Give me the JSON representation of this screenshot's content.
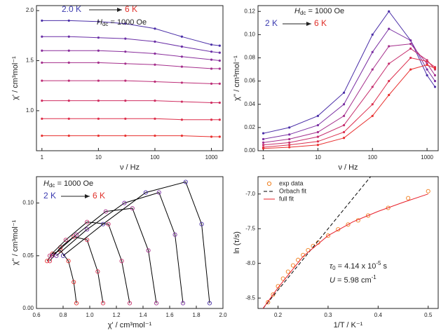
{
  "chart_data": [
    {
      "type": "line",
      "x_scale": "log",
      "xlim": [
        0.8,
        1600
      ],
      "ylim": [
        0.6,
        2.05
      ],
      "xticks": [
        1,
        10,
        100,
        1000
      ],
      "yticks": [
        {
          "value": 1,
          "label": "1.0"
        },
        {
          "value": 1.5,
          "label": "1.5"
        },
        {
          "value": 2,
          "label": "2.0"
        }
      ],
      "x_label": "ν / Hz",
      "y_label": "χ' / cm³mol⁻¹",
      "temp_from": "2.0 K",
      "temp_to": "6 K",
      "temp_from_color": "#3b3bb0",
      "temp_to_color": "#e0302a",
      "field_label": [
        "H",
        "dc",
        " = 1000 Oe"
      ],
      "x": [
        1,
        3,
        10,
        30,
        100,
        300,
        1000,
        1400
      ],
      "series": [
        {
          "color": "#4b2fa8",
          "values": [
            1.9,
            1.9,
            1.89,
            1.87,
            1.82,
            1.74,
            1.66,
            1.65
          ]
        },
        {
          "color": "#6a2fa6",
          "values": [
            1.74,
            1.74,
            1.73,
            1.72,
            1.69,
            1.64,
            1.59,
            1.58
          ]
        },
        {
          "color": "#8a2f9c",
          "values": [
            1.6,
            1.6,
            1.6,
            1.59,
            1.57,
            1.54,
            1.51,
            1.5
          ]
        },
        {
          "color": "#a52f8c",
          "values": [
            1.48,
            1.48,
            1.48,
            1.47,
            1.46,
            1.44,
            1.42,
            1.42
          ]
        },
        {
          "color": "#bd2f78",
          "values": [
            1.3,
            1.3,
            1.3,
            1.3,
            1.29,
            1.28,
            1.27,
            1.27
          ]
        },
        {
          "color": "#d02f62",
          "values": [
            1.1,
            1.1,
            1.1,
            1.1,
            1.1,
            1.09,
            1.08,
            1.08
          ]
        },
        {
          "color": "#de2f4a",
          "values": [
            0.92,
            0.92,
            0.92,
            0.92,
            0.92,
            0.91,
            0.91,
            0.91
          ]
        },
        {
          "color": "#e8302f",
          "values": [
            0.75,
            0.75,
            0.75,
            0.75,
            0.75,
            0.75,
            0.74,
            0.74
          ]
        }
      ]
    },
    {
      "type": "line",
      "x_scale": "log",
      "xlim": [
        0.8,
        1600
      ],
      "ylim": [
        0,
        0.125
      ],
      "xticks": [
        1,
        10,
        100,
        1000
      ],
      "yticks": [
        {
          "value": 0,
          "label": "0.00"
        },
        {
          "value": 0.02,
          "label": "0.02"
        },
        {
          "value": 0.04,
          "label": "0.04"
        },
        {
          "value": 0.06,
          "label": "0.06"
        },
        {
          "value": 0.08,
          "label": "0.08"
        },
        {
          "value": 0.1,
          "label": "0.10"
        },
        {
          "value": 0.12,
          "label": "0.12"
        }
      ],
      "x_label": "ν / Hz",
      "y_label": "χ'' / cm³mol⁻¹",
      "temp_from": "2 K",
      "temp_to": "6 K",
      "temp_from_color": "#3b3bb0",
      "temp_to_color": "#e0302a",
      "field_label": [
        "H",
        "dc",
        " = 1000 Oe"
      ],
      "x": [
        1,
        3,
        10,
        30,
        100,
        200,
        500,
        1000,
        1400
      ],
      "series": [
        {
          "color": "#4b2fa8",
          "values": [
            0.015,
            0.02,
            0.03,
            0.05,
            0.1,
            0.12,
            0.095,
            0.065,
            0.055
          ]
        },
        {
          "color": "#7a2fa2",
          "values": [
            0.01,
            0.014,
            0.022,
            0.04,
            0.085,
            0.105,
            0.095,
            0.07,
            0.06
          ]
        },
        {
          "color": "#a52f8c",
          "values": [
            0.007,
            0.01,
            0.016,
            0.03,
            0.07,
            0.09,
            0.092,
            0.075,
            0.065
          ]
        },
        {
          "color": "#c62f6e",
          "values": [
            0.005,
            0.007,
            0.012,
            0.022,
            0.055,
            0.075,
            0.088,
            0.078,
            0.07
          ]
        },
        {
          "color": "#dc2f4e",
          "values": [
            0.003,
            0.005,
            0.008,
            0.016,
            0.04,
            0.06,
            0.08,
            0.077,
            0.072
          ]
        },
        {
          "color": "#e8302f",
          "values": [
            0.002,
            0.003,
            0.005,
            0.011,
            0.03,
            0.048,
            0.07,
            0.074,
            0.071
          ]
        }
      ]
    },
    {
      "type": "scatter",
      "xlim": [
        0.6,
        2.0
      ],
      "ylim": [
        0,
        0.125
      ],
      "xticks": [
        0.6,
        0.8,
        {
          "value": 1,
          "label": "1.0"
        },
        1.2,
        1.4,
        1.6,
        1.8,
        {
          "value": 2,
          "label": "2.0"
        }
      ],
      "yticks": [
        {
          "value": 0,
          "label": "0.00"
        },
        0.05,
        {
          "value": 0.1,
          "label": "0.10"
        }
      ],
      "x_label": "χ' / cm³mol⁻¹",
      "y_label": "χ'' / cm³mol⁻¹",
      "temp_from": "2 K",
      "temp_to": "6 K",
      "temp_from_color": "#3b3bb0",
      "temp_to_color": "#e0302a",
      "field_label": [
        "H",
        "dc",
        " = 1000 Oe"
      ],
      "series": [
        {
          "color": "#e8302f",
          "marker": "circle",
          "line_color": "#000000",
          "x": [
            0.68,
            0.72,
            0.78,
            0.84,
            0.88,
            0.9
          ],
          "values": [
            0.045,
            0.052,
            0.055,
            0.045,
            0.025,
            0.005
          ]
        },
        {
          "color": "#dc2f4e",
          "marker": "circle",
          "line_color": "#000000",
          "x": [
            0.7,
            0.78,
            0.88,
            0.98,
            1.06,
            1.1
          ],
          "values": [
            0.045,
            0.058,
            0.068,
            0.065,
            0.035,
            0.005
          ]
        },
        {
          "color": "#c62f6e",
          "marker": "circle",
          "line_color": "#000000",
          "x": [
            0.7,
            0.82,
            0.98,
            1.14,
            1.24,
            1.3
          ],
          "values": [
            0.05,
            0.065,
            0.082,
            0.08,
            0.045,
            0.005
          ]
        },
        {
          "color": "#a52f8c",
          "marker": "circle",
          "line_color": "#000000",
          "x": [
            0.72,
            0.9,
            1.12,
            1.32,
            1.44,
            1.5
          ],
          "values": [
            0.05,
            0.07,
            0.092,
            0.095,
            0.055,
            0.005
          ]
        },
        {
          "color": "#7a2fa2",
          "marker": "circle",
          "line_color": "#000000",
          "x": [
            0.75,
            0.98,
            1.26,
            1.52,
            1.64,
            1.7
          ],
          "values": [
            0.05,
            0.075,
            0.1,
            0.11,
            0.07,
            0.005
          ]
        },
        {
          "color": "#4b2fa8",
          "marker": "circle",
          "line_color": "#000000",
          "x": [
            0.8,
            1.1,
            1.42,
            1.72,
            1.84,
            1.9
          ],
          "values": [
            0.05,
            0.08,
            0.11,
            0.12,
            0.08,
            0.005
          ]
        }
      ]
    },
    {
      "type": "scatter",
      "xlim": [
        0.16,
        0.52
      ],
      "ylim": [
        -8.65,
        -6.75
      ],
      "xticks": [
        0.2,
        0.3,
        0.4,
        0.5
      ],
      "yticks": [
        -8.5,
        {
          "value": -8,
          "label": "-8.0"
        },
        -7.5,
        {
          "value": -7,
          "label": "-7.0"
        }
      ],
      "x_label": "1/T / K⁻¹",
      "y_label": "ln (τ/s)",
      "tau_label": [
        "τ",
        "0",
        " = 4.14 x 10",
        "-5",
        " s"
      ],
      "u_label": [
        "U",
        " = 5.98 cm",
        "-1"
      ],
      "series": [
        {
          "name": "exp data",
          "color": "#f07f1e",
          "marker": "circle",
          "x": [
            0.18,
            0.19,
            0.2,
            0.21,
            0.22,
            0.23,
            0.24,
            0.25,
            0.26,
            0.27,
            0.28,
            0.3,
            0.32,
            0.34,
            0.36,
            0.38,
            0.42,
            0.46,
            0.5
          ],
          "values": [
            -8.56,
            -8.45,
            -8.33,
            -8.22,
            -8.12,
            -8.03,
            -7.95,
            -7.88,
            -7.81,
            -7.75,
            -7.7,
            -7.6,
            -7.51,
            -7.44,
            -7.38,
            -7.31,
            -7.2,
            -7.06,
            -6.96
          ]
        },
        {
          "name": "Orbach fit",
          "color": "#000000",
          "line_color": "#000000",
          "dash": true,
          "x": [
            0.17,
            0.385
          ],
          "values": [
            -8.65,
            -6.75
          ]
        },
        {
          "name": "full fit",
          "color": "#e8202a",
          "line_color": "#e8202a",
          "x": [
            0.17,
            0.2,
            0.25,
            0.3,
            0.35,
            0.4,
            0.45,
            0.5
          ],
          "values": [
            -8.65,
            -8.35,
            -7.9,
            -7.6,
            -7.4,
            -7.25,
            -7.12,
            -7.0
          ]
        }
      ]
    }
  ]
}
